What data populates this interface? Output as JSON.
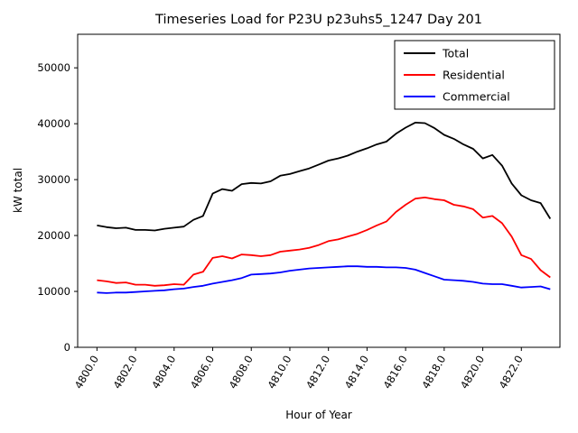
{
  "figure": {
    "title": "Timeseries Load for P23U p23uhs5_1247  Day 201",
    "xlabel": "Hour of Year",
    "ylabel": "kW total"
  },
  "chart_data": {
    "type": "line",
    "title": "Timeseries Load for P23U p23uhs5_1247  Day 201",
    "xlabel": "Hour of Year",
    "ylabel": "kW total",
    "xlim": [
      4799.0,
      4824.0
    ],
    "ylim": [
      0,
      56000
    ],
    "x_tick_values": [
      4800,
      4802,
      4804,
      4806,
      4808,
      4810,
      4812,
      4814,
      4816,
      4818,
      4820,
      4822
    ],
    "x_tick_labels": [
      "4800.0",
      "4802.0",
      "4804.0",
      "4806.0",
      "4808.0",
      "4810.0",
      "4812.0",
      "4814.0",
      "4816.0",
      "4818.0",
      "4820.0",
      "4822.0"
    ],
    "y_tick_values": [
      0,
      10000,
      20000,
      30000,
      40000,
      50000
    ],
    "y_tick_labels": [
      "0",
      "10000",
      "20000",
      "30000",
      "40000",
      "50000"
    ],
    "grid": false,
    "legend_position": "upper right",
    "x": [
      4800.0,
      4800.5,
      4801.0,
      4801.5,
      4802.0,
      4802.5,
      4803.0,
      4803.5,
      4804.0,
      4804.5,
      4805.0,
      4805.5,
      4806.0,
      4806.5,
      4807.0,
      4807.5,
      4808.0,
      4808.5,
      4809.0,
      4809.5,
      4810.0,
      4810.5,
      4811.0,
      4811.5,
      4812.0,
      4812.5,
      4813.0,
      4813.5,
      4814.0,
      4814.5,
      4815.0,
      4815.5,
      4816.0,
      4816.5,
      4817.0,
      4817.5,
      4818.0,
      4818.5,
      4819.0,
      4819.5,
      4820.0,
      4820.5,
      4821.0,
      4821.5,
      4822.0,
      4822.5,
      4823.0,
      4823.5
    ],
    "series": [
      {
        "name": "Total",
        "color": "#000000",
        "values": [
          21800,
          21500,
          21300,
          21400,
          21000,
          21000,
          20900,
          21200,
          21400,
          21600,
          22800,
          23500,
          27500,
          28300,
          28000,
          29200,
          29400,
          29300,
          29700,
          30700,
          31000,
          31500,
          32000,
          32700,
          33400,
          33800,
          34300,
          35000,
          35600,
          36300,
          36800,
          38200,
          39300,
          40200,
          40100,
          39200,
          38000,
          37300,
          36300,
          35500,
          33800,
          34400,
          32500,
          29300,
          27200,
          26300,
          25800,
          23000
        ]
      },
      {
        "name": "Residential",
        "color": "#ff0000",
        "values": [
          12000,
          11800,
          11500,
          11600,
          11200,
          11200,
          11000,
          11100,
          11300,
          11200,
          13000,
          13500,
          16000,
          16300,
          15900,
          16600,
          16500,
          16300,
          16500,
          17100,
          17300,
          17500,
          17800,
          18300,
          19000,
          19300,
          19800,
          20300,
          21000,
          21800,
          22500,
          24200,
          25500,
          26600,
          26800,
          26500,
          26300,
          25500,
          25200,
          24700,
          23200,
          23500,
          22200,
          19800,
          16500,
          15800,
          13800,
          12500
        ]
      },
      {
        "name": "Commercial",
        "color": "#0000ff",
        "values": [
          9800,
          9700,
          9800,
          9800,
          9900,
          10000,
          10100,
          10200,
          10400,
          10500,
          10800,
          11000,
          11400,
          11700,
          12000,
          12400,
          13000,
          13100,
          13200,
          13400,
          13700,
          13900,
          14100,
          14200,
          14300,
          14400,
          14500,
          14500,
          14400,
          14400,
          14300,
          14300,
          14200,
          13900,
          13300,
          12700,
          12100,
          12000,
          11900,
          11700,
          11400,
          11300,
          11300,
          11000,
          10700,
          10800,
          10900,
          10400
        ]
      }
    ]
  }
}
